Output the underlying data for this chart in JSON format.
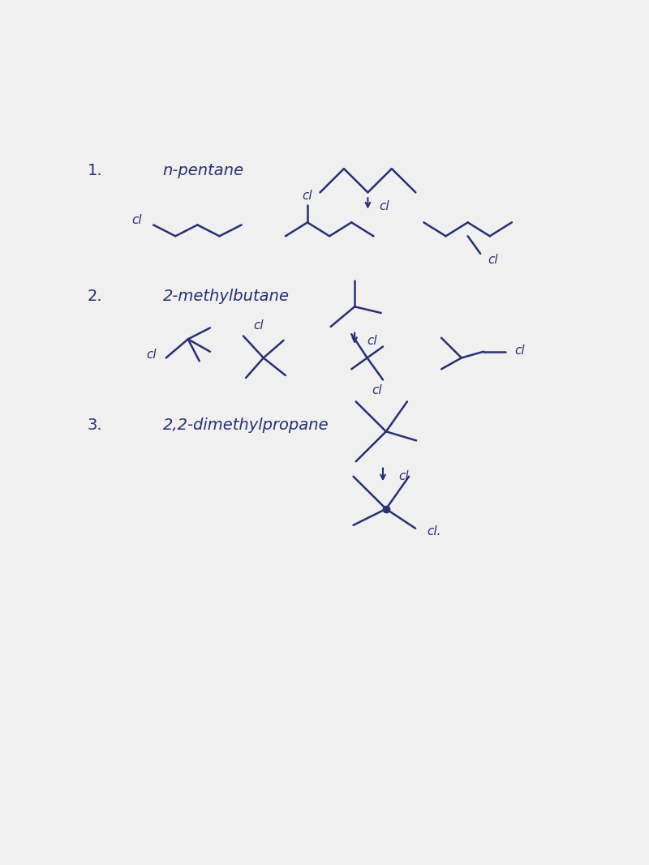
{
  "bg_color": "#f0f0f0",
  "ink_color": "#2a3070",
  "fig_width": 8.0,
  "fig_height": 10.67,
  "labels": {
    "1": "1.",
    "n_pentane": "n-pentane",
    "2": "2.",
    "methylbutane": "2-methylbutane",
    "3": "3.",
    "dimethylpropane": "2,2-dimethylpropane"
  },
  "font_size_label": 14,
  "font_size_cl": 11,
  "lw": 1.8
}
